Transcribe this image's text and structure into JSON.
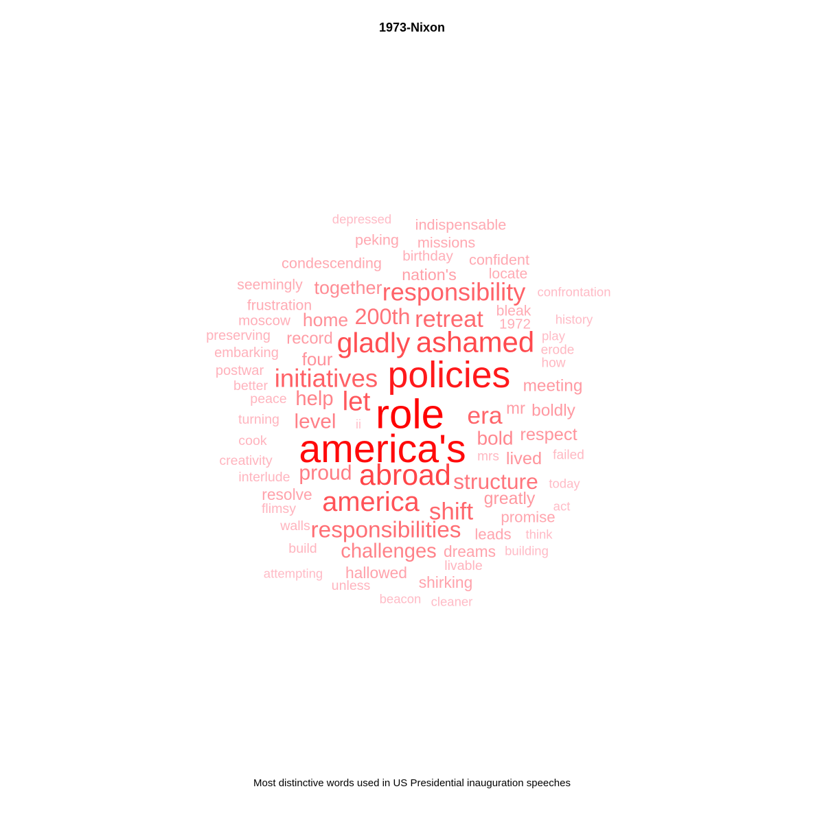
{
  "chart_data": {
    "type": "wordcloud",
    "title": "1973-Nixon",
    "caption": "Most distinctive words used in US Presidential inauguration speeches",
    "color_scale": {
      "low": "#ffc0cb",
      "high": "#ff0000"
    },
    "words": [
      {
        "word": "role",
        "weight": 1.0
      },
      {
        "word": "america's",
        "weight": 0.95
      },
      {
        "word": "policies",
        "weight": 0.88
      },
      {
        "word": "abroad",
        "weight": 0.68
      },
      {
        "word": "ashamed",
        "weight": 0.66
      },
      {
        "word": "gladly",
        "weight": 0.64
      },
      {
        "word": "america",
        "weight": 0.62
      },
      {
        "word": "let",
        "weight": 0.6
      },
      {
        "word": "initiatives",
        "weight": 0.56
      },
      {
        "word": "responsibility",
        "weight": 0.55
      },
      {
        "word": "era",
        "weight": 0.54
      },
      {
        "word": "shift",
        "weight": 0.53
      },
      {
        "word": "retreat",
        "weight": 0.52
      },
      {
        "word": "responsibilities",
        "weight": 0.5
      },
      {
        "word": "200th",
        "weight": 0.48
      },
      {
        "word": "structure",
        "weight": 0.47
      },
      {
        "word": "proud",
        "weight": 0.44
      },
      {
        "word": "level",
        "weight": 0.43
      },
      {
        "word": "help",
        "weight": 0.42
      },
      {
        "word": "challenges",
        "weight": 0.42
      },
      {
        "word": "bold",
        "weight": 0.4
      },
      {
        "word": "together",
        "weight": 0.38
      },
      {
        "word": "home",
        "weight": 0.37
      },
      {
        "word": "four",
        "weight": 0.36
      },
      {
        "word": "respect",
        "weight": 0.35
      },
      {
        "word": "lived",
        "weight": 0.35
      },
      {
        "word": "greatly",
        "weight": 0.34
      },
      {
        "word": "meeting",
        "weight": 0.33
      },
      {
        "word": "boldly",
        "weight": 0.33
      },
      {
        "word": "mr",
        "weight": 0.32
      },
      {
        "word": "record",
        "weight": 0.32
      },
      {
        "word": "nation's",
        "weight": 0.31
      },
      {
        "word": "resolve",
        "weight": 0.3
      },
      {
        "word": "dreams",
        "weight": 0.3
      },
      {
        "word": "shirking",
        "weight": 0.3
      },
      {
        "word": "hallowed",
        "weight": 0.3
      },
      {
        "word": "leads",
        "weight": 0.29
      },
      {
        "word": "promise",
        "weight": 0.29
      },
      {
        "word": "confident",
        "weight": 0.28
      },
      {
        "word": "missions",
        "weight": 0.28
      },
      {
        "word": "indispensable",
        "weight": 0.28
      },
      {
        "word": "condescending",
        "weight": 0.28
      },
      {
        "word": "peking",
        "weight": 0.28
      },
      {
        "word": "seemingly",
        "weight": 0.27
      },
      {
        "word": "frustration",
        "weight": 0.27
      },
      {
        "word": "locate",
        "weight": 0.27
      },
      {
        "word": "bleak",
        "weight": 0.27
      },
      {
        "word": "1972",
        "weight": 0.26
      },
      {
        "word": "birthday",
        "weight": 0.26
      },
      {
        "word": "moscow",
        "weight": 0.26
      },
      {
        "word": "preserving",
        "weight": 0.25
      },
      {
        "word": "embarking",
        "weight": 0.25
      },
      {
        "word": "postwar",
        "weight": 0.25
      },
      {
        "word": "better",
        "weight": 0.24
      },
      {
        "word": "peace",
        "weight": 0.24
      },
      {
        "word": "turning",
        "weight": 0.24
      },
      {
        "word": "cook",
        "weight": 0.24
      },
      {
        "word": "creativity",
        "weight": 0.24
      },
      {
        "word": "interlude",
        "weight": 0.24
      },
      {
        "word": "flimsy",
        "weight": 0.24
      },
      {
        "word": "walls",
        "weight": 0.24
      },
      {
        "word": "build",
        "weight": 0.24
      },
      {
        "word": "unless",
        "weight": 0.24
      },
      {
        "word": "livable",
        "weight": 0.24
      },
      {
        "word": "mrs",
        "weight": 0.23
      },
      {
        "word": "failed",
        "weight": 0.23
      },
      {
        "word": "erode",
        "weight": 0.23
      },
      {
        "word": "how",
        "weight": 0.23
      },
      {
        "word": "today",
        "weight": 0.22
      },
      {
        "word": "act",
        "weight": 0.22
      },
      {
        "word": "think",
        "weight": 0.22
      },
      {
        "word": "building",
        "weight": 0.22
      },
      {
        "word": "history",
        "weight": 0.22
      },
      {
        "word": "play",
        "weight": 0.22
      },
      {
        "word": "confrontation",
        "weight": 0.22
      },
      {
        "word": "depressed",
        "weight": 0.22
      },
      {
        "word": "attempting",
        "weight": 0.22
      },
      {
        "word": "beacon",
        "weight": 0.22
      },
      {
        "word": "cleaner",
        "weight": 0.22
      },
      {
        "word": "ii",
        "weight": 0.21
      }
    ]
  }
}
